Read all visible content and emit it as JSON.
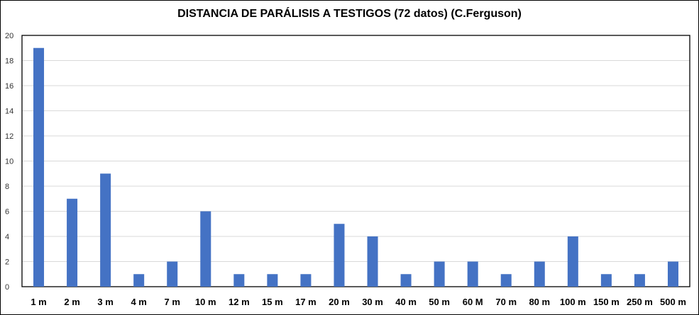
{
  "chart_data": {
    "type": "bar",
    "title": "DISTANCIA DE PARÁLISIS A TESTIGOS (72 datos) (C.Ferguson)",
    "xlabel": "",
    "ylabel": "",
    "categories": [
      "1 m",
      "2 m",
      "3 m",
      "4 m",
      "7 m",
      "10 m",
      "12 m",
      "15 m",
      "17 m",
      "20 m",
      "30 m",
      "40 m",
      "50 m",
      "60 M",
      "70 m",
      "80 m",
      "100 m",
      "150 m",
      "250 m",
      "500 m"
    ],
    "values": [
      19,
      7,
      9,
      1,
      2,
      6,
      1,
      1,
      1,
      5,
      4,
      1,
      2,
      2,
      1,
      2,
      4,
      1,
      1,
      2
    ],
    "ylim": [
      0,
      20
    ],
    "yticks": [
      "0",
      "2",
      "4",
      "6",
      "8",
      "10",
      "12",
      "14",
      "16",
      "18",
      "20"
    ],
    "grid": true,
    "legend": "none",
    "bar_color": "#4472C4",
    "grid_color": "#d9d9d9"
  }
}
